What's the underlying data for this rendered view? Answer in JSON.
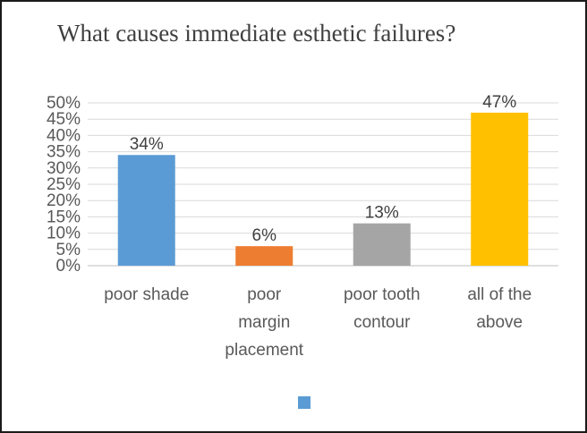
{
  "chart_data": {
    "type": "bar",
    "title": "What causes immediate esthetic failures?",
    "xlabel": "",
    "ylabel": "",
    "categories": [
      [
        "poor shade"
      ],
      [
        "poor",
        "margin",
        "placement"
      ],
      [
        "poor tooth",
        "contour"
      ],
      [
        "all of the",
        "above"
      ]
    ],
    "values": [
      34,
      6,
      13,
      47
    ],
    "data_labels": [
      "34%",
      "6%",
      "13%",
      "47%"
    ],
    "bar_colors": [
      "#5b9bd5",
      "#ed7d31",
      "#a5a5a5",
      "#ffc000"
    ],
    "ylim": [
      0,
      50
    ],
    "yticks": [
      "0%",
      "5%",
      "10%",
      "15%",
      "20%",
      "25%",
      "30%",
      "35%",
      "40%",
      "45%",
      "50%"
    ],
    "grid": true,
    "legend": {
      "position": "bottom",
      "swatch_color": "#5b9bd5"
    }
  }
}
